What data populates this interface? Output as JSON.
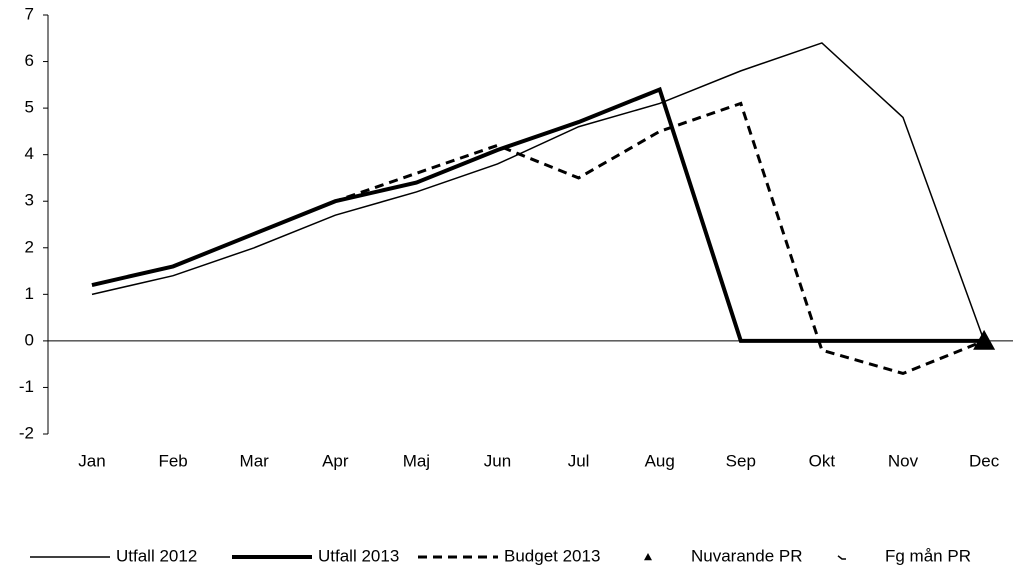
{
  "chart_data": {
    "type": "line",
    "categories": [
      "Jan",
      "Feb",
      "Mar",
      "Apr",
      "Maj",
      "Jun",
      "Jul",
      "Aug",
      "Sep",
      "Okt",
      "Nov",
      "Dec"
    ],
    "ylim": [
      -2,
      7
    ],
    "yticks": [
      -2,
      -1,
      0,
      1,
      2,
      3,
      4,
      5,
      6,
      7
    ],
    "series": [
      {
        "name": "Utfall 2012",
        "color": "#000000",
        "width": 1.5,
        "dash": "none",
        "marker": "none",
        "values": [
          1.0,
          1.4,
          2.0,
          2.7,
          3.2,
          3.8,
          4.6,
          5.1,
          5.8,
          6.4,
          4.8,
          0
        ]
      },
      {
        "name": "Utfall 2013",
        "color": "#000000",
        "width": 4,
        "dash": "none",
        "marker": "none",
        "values": [
          1.2,
          1.6,
          2.3,
          3.0,
          3.4,
          4.1,
          4.7,
          5.4,
          0,
          0,
          0,
          0
        ]
      },
      {
        "name": "Budget 2013",
        "color": "#000000",
        "width": 3,
        "dash": "9 6",
        "marker": "none",
        "values": [
          1.2,
          1.6,
          2.3,
          3.0,
          3.6,
          4.2,
          3.5,
          4.5,
          5.1,
          -0.2,
          -0.7,
          0
        ]
      },
      {
        "name": "Nuvarande PR",
        "color": "#000000",
        "width": 0,
        "dash": "none",
        "marker": "triangle",
        "values": [
          null,
          null,
          null,
          null,
          null,
          null,
          null,
          null,
          null,
          null,
          null,
          0
        ]
      },
      {
        "name": "Fg mån PR",
        "color": "#000000",
        "width": 0,
        "dash": "none",
        "marker": "corner",
        "values": [
          null,
          null,
          null,
          null,
          null,
          null,
          null,
          null,
          null,
          null,
          null,
          null
        ]
      }
    ]
  }
}
